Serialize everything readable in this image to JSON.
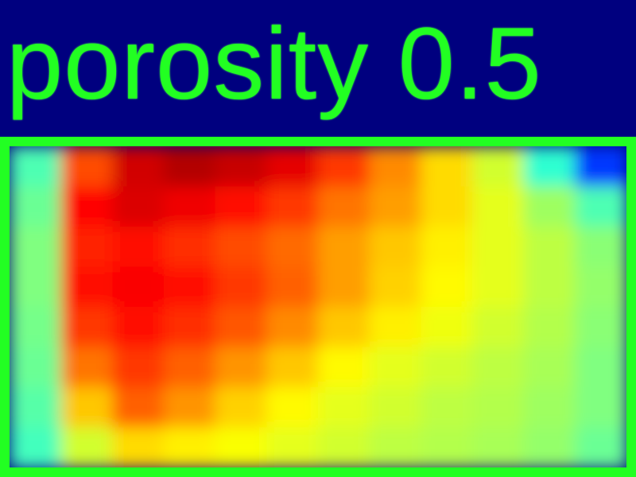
{
  "chart_data": {
    "type": "heatmap",
    "title": "porosity 0.5",
    "colormap": "jet",
    "colors": {
      "background": "#00007f",
      "frame": "#22ff22",
      "title": "#22ff22"
    },
    "value_range": [
      0,
      1
    ],
    "rows": 8,
    "cols": 12,
    "values": [
      [
        0.45,
        0.8,
        0.92,
        0.95,
        0.93,
        0.9,
        0.82,
        0.74,
        0.66,
        0.58,
        0.42,
        0.18
      ],
      [
        0.48,
        0.87,
        0.91,
        0.89,
        0.86,
        0.82,
        0.76,
        0.72,
        0.66,
        0.6,
        0.53,
        0.45
      ],
      [
        0.5,
        0.84,
        0.86,
        0.83,
        0.8,
        0.77,
        0.72,
        0.68,
        0.64,
        0.6,
        0.56,
        0.51
      ],
      [
        0.5,
        0.86,
        0.88,
        0.86,
        0.82,
        0.78,
        0.72,
        0.67,
        0.63,
        0.6,
        0.56,
        0.52
      ],
      [
        0.49,
        0.82,
        0.86,
        0.83,
        0.79,
        0.74,
        0.68,
        0.64,
        0.61,
        0.58,
        0.55,
        0.51
      ],
      [
        0.48,
        0.76,
        0.82,
        0.78,
        0.73,
        0.68,
        0.63,
        0.6,
        0.58,
        0.56,
        0.54,
        0.5
      ],
      [
        0.46,
        0.68,
        0.78,
        0.73,
        0.67,
        0.63,
        0.6,
        0.58,
        0.56,
        0.55,
        0.53,
        0.5
      ],
      [
        0.44,
        0.58,
        0.66,
        0.64,
        0.62,
        0.6,
        0.58,
        0.56,
        0.55,
        0.54,
        0.52,
        0.48
      ]
    ]
  }
}
